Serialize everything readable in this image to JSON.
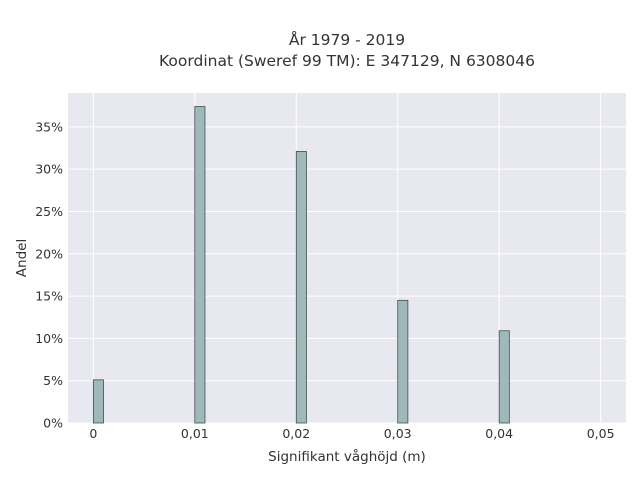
{
  "chart_data": {
    "type": "bar",
    "title_line1": "År 1979 - 2019",
    "title_line2": "Koordinat (Sweref 99 TM): E 347129, N 6308046",
    "xlabel": "Signifikant våghöjd (m)",
    "ylabel": "Andel",
    "x": [
      0,
      0.01,
      0.02,
      0.03,
      0.04
    ],
    "values": [
      5.1,
      37.4,
      32.1,
      14.5,
      10.9
    ],
    "bar_width": 0.001,
    "xlim": [
      -0.0025,
      0.0525
    ],
    "ylim": [
      0,
      39
    ],
    "x_ticks": [
      0,
      0.01,
      0.02,
      0.03,
      0.04,
      0.05
    ],
    "x_tick_labels": [
      "0",
      "0,01",
      "0,02",
      "0,03",
      "0,04",
      "0,05"
    ],
    "y_ticks": [
      0,
      5,
      10,
      15,
      20,
      25,
      30,
      35
    ],
    "y_tick_labels": [
      "0%",
      "5%",
      "10%",
      "15%",
      "20%",
      "25%",
      "30%",
      "35%"
    ],
    "grid": true,
    "colors": {
      "plot_background": "#e8e8f0",
      "grid": "#ffffff",
      "bar_fill": "#9fb9bb",
      "bar_stroke": "#3f4f4f"
    }
  }
}
